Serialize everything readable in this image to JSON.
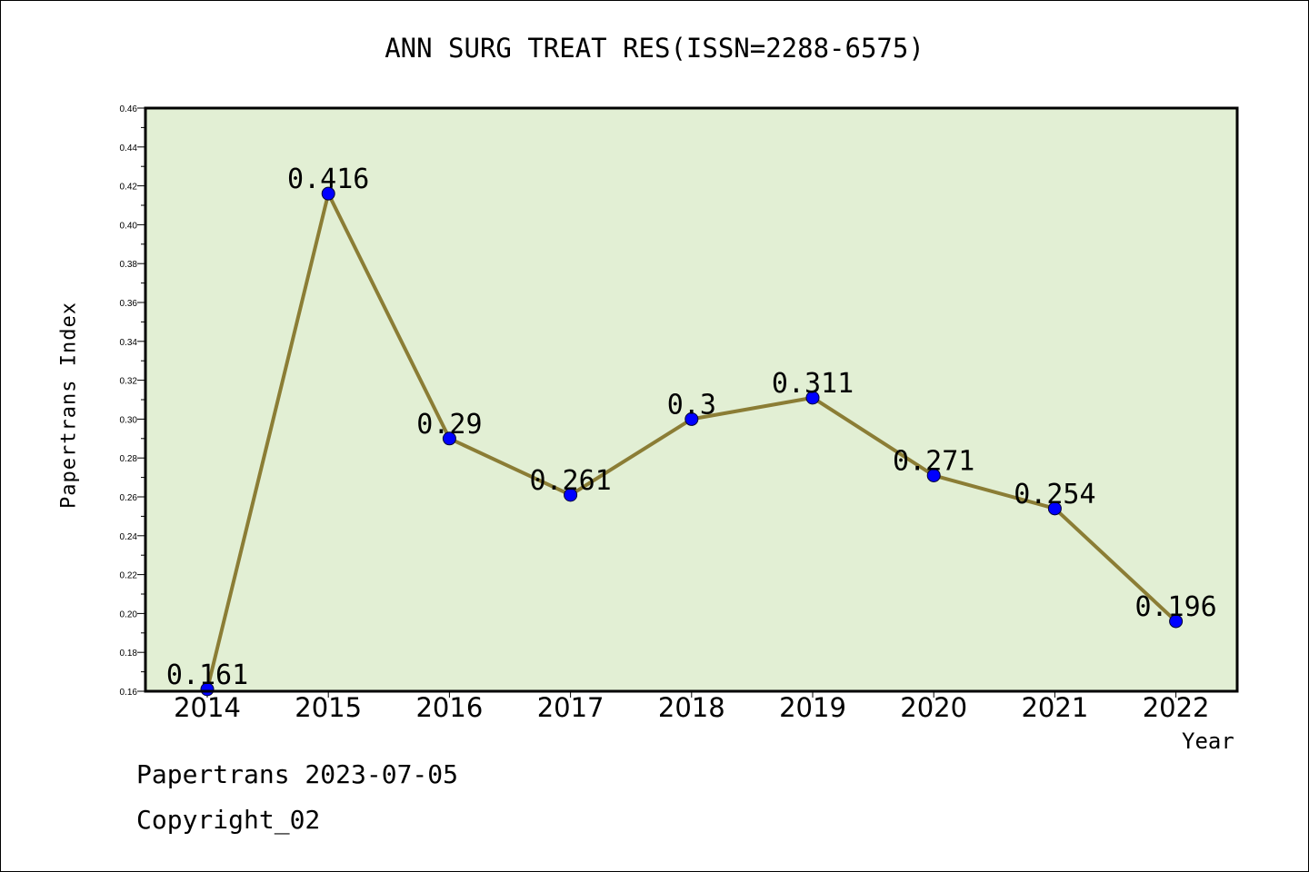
{
  "chart_data": {
    "type": "line",
    "title": "ANN SURG TREAT RES(ISSN=2288-6575)",
    "xlabel": "Year",
    "ylabel": "Papertrans Index",
    "categories": [
      "2014",
      "2015",
      "2016",
      "2017",
      "2018",
      "2019",
      "2020",
      "2021",
      "2022"
    ],
    "values": [
      0.161,
      0.416,
      0.29,
      0.261,
      0.3,
      0.311,
      0.271,
      0.254,
      0.196
    ],
    "data_labels": [
      "0.161",
      "0.416",
      "0.29",
      "0.261",
      "0.3",
      "0.311",
      "0.271",
      "0.254",
      "0.196"
    ],
    "ylim": [
      0.16,
      0.46
    ],
    "yticks": [
      "0.16",
      "0.18",
      "0.20",
      "0.22",
      "0.24",
      "0.26",
      "0.28",
      "0.30",
      "0.32",
      "0.34",
      "0.36",
      "0.38",
      "0.40",
      "0.42",
      "0.44",
      "0.46"
    ],
    "grid": false,
    "legend": "none",
    "colors": {
      "plot_background": "#e2efd4",
      "line": "#8b7d35",
      "marker": "#0000ff"
    }
  },
  "footer": {
    "date": "Papertrans 2023-07-05",
    "copyright": "Copyright_02"
  }
}
